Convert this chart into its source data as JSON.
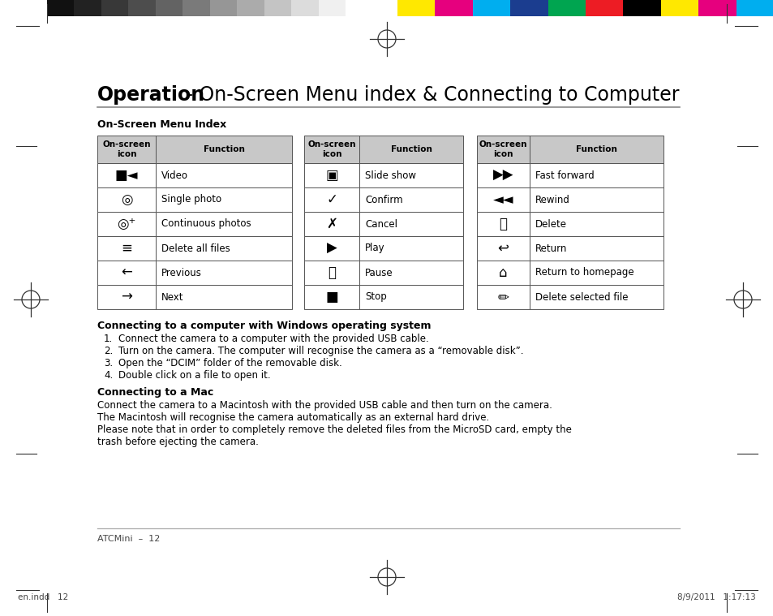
{
  "bg_color": "#ffffff",
  "title_bold": "Operation",
  "title_dash": " - ",
  "title_normal": "On-Screen Menu index & Connecting to Computer",
  "section1_title": "On-Screen Menu Index",
  "col1_rows": [
    [
      "■◄",
      "Video"
    ],
    [
      "📷",
      "Single photo"
    ],
    [
      "📷⁺",
      "Continuous photos"
    ],
    [
      "⚲",
      "Delete all files"
    ],
    [
      "←",
      "Previous"
    ],
    [
      "→",
      "Next"
    ]
  ],
  "col2_rows": [
    [
      "□▶",
      "Slide show"
    ],
    [
      "✓",
      "Confirm"
    ],
    [
      "✗",
      "Cancel"
    ],
    [
      "▶",
      "Play"
    ],
    [
      "⏸",
      "Pause"
    ],
    [
      "■",
      "Stop"
    ]
  ],
  "col3_rows": [
    [
      "▶▶",
      "Fast forward"
    ],
    [
      "◄◄",
      "Rewind"
    ],
    [
      "🗑",
      "Delete"
    ],
    [
      "↩",
      "Return"
    ],
    [
      "⌂",
      "Return to homepage"
    ],
    [
      "✏",
      "Delete selected file"
    ]
  ],
  "col1_icon_syms": [
    "■◄",
    "◎",
    "◎+",
    "≡",
    "←",
    "→"
  ],
  "col2_icon_syms": [
    "□",
    "✓",
    "✗",
    "▶",
    "⏸",
    "■"
  ],
  "col3_icon_syms": [
    "▶▶",
    "◄◄",
    "🗑",
    "↩",
    "⌂",
    "✏"
  ],
  "connecting_windows_title": "Connecting to a computer with Windows operating system",
  "connecting_windows_steps": [
    "Connect the camera to a computer with the provided USB cable.",
    "Turn on the camera. The computer will recognise the camera as a “removable disk”.",
    "Open the “DCIM” folder of the removable disk.",
    "Double click on a file to open it."
  ],
  "connecting_mac_title": "Connecting to a Mac",
  "connecting_mac_lines": [
    "Connect the camera to a Macintosh with the provided USB cable and then turn on the camera.",
    "The Macintosh will recognise the camera automatically as an external hard drive.",
    "Please note that in order to completely remove the deleted files from the MicroSD card, empty the",
    "trash before ejecting the camera."
  ],
  "footer": "ATCMini  –  12",
  "footer_right": "8/9/2011   1:17:13",
  "footer_left": "en.indd   12",
  "color_bar_left": [
    "#111111",
    "#222222",
    "#383838",
    "#4d4d4d",
    "#636363",
    "#7a7a7a",
    "#969696",
    "#ababab",
    "#c4c4c4",
    "#dcdcdc",
    "#f0f0f0"
  ],
  "color_bar_right": [
    "#ffe800",
    "#e6007e",
    "#00aeef",
    "#1b3d8f",
    "#00a550",
    "#ed1c24",
    "#000000",
    "#ffe800",
    "#e6007e",
    "#00aeef"
  ]
}
